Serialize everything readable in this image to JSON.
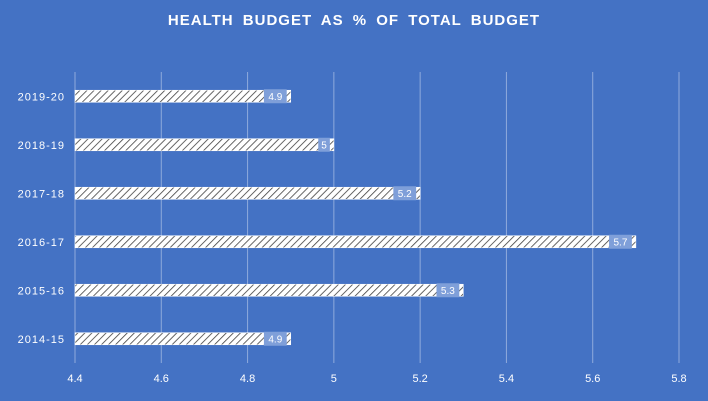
{
  "chart_data": {
    "type": "bar",
    "orientation": "horizontal",
    "title": "HEALTH  BUDGET  AS %  OF TOTAL  BUDGET",
    "categories": [
      "2014-15",
      "2015-16",
      "2016-17",
      "2017-18",
      "2018-19",
      "2019-20"
    ],
    "values": [
      4.9,
      5.3,
      5.7,
      5.2,
      5,
      4.9
    ],
    "data_labels": [
      "4.9",
      "5.3",
      "5.7",
      "5.2",
      "5",
      "4.9"
    ],
    "xlim": [
      4.4,
      5.8
    ],
    "x_ticks": [
      "4.4",
      "4.6",
      "4.8",
      "5",
      "5.2",
      "5.4",
      "5.6",
      "5.8"
    ],
    "grid": "vertical",
    "legend": "none",
    "colors": {
      "background": "#4472c4",
      "bar_fill": "#ffffff",
      "bar_hatch": "#404040",
      "gridline": "#8faadc",
      "label_box": "#7f9fd9",
      "text": "#ffffff"
    }
  }
}
